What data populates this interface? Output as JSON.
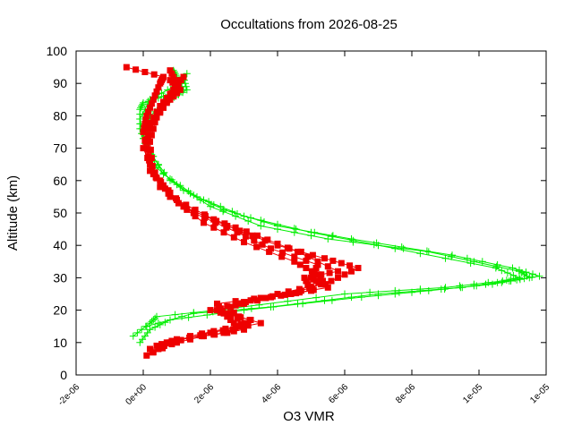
{
  "chart_data": {
    "type": "scatter",
    "title": "Occultations from 2026-08-25",
    "xlabel": "O3 VMR",
    "ylabel": "Altitude (km)",
    "xlim": [
      -2e-06,
      1.2e-05
    ],
    "ylim": [
      0,
      100
    ],
    "x_ticks": [
      {
        "value": -2e-06,
        "label": "-2e-06"
      },
      {
        "value": 0,
        "label": "0e+00"
      },
      {
        "value": 2e-06,
        "label": "2e-06"
      },
      {
        "value": 4e-06,
        "label": "4e-06"
      },
      {
        "value": 6e-06,
        "label": "6e-06"
      },
      {
        "value": 8e-06,
        "label": "8e-06"
      },
      {
        "value": 1e-05,
        "label": "1e-05"
      },
      {
        "value": 1.2e-05,
        "label": "1e-05"
      }
    ],
    "y_ticks": [
      0,
      10,
      20,
      30,
      40,
      50,
      60,
      70,
      80,
      90,
      100
    ],
    "grid": false,
    "legend": "none",
    "series": [
      {
        "marker": "plus",
        "color": "#00ee00",
        "profiles": [
          {
            "x": [
              -1e-07,
              2e-07,
              8e-07,
              3e-06,
              6.5e-06,
              8.5e-06,
              1.04e-05,
              1.15e-05,
              1.12e-05,
              8.5e-06,
              5.5e-06,
              3.5e-06,
              2e-06,
              8e-07,
              1e-07,
              -1e-07,
              -1e-07,
              0,
              6e-07,
              1.2e-06,
              1e-06,
              9e-07
            ],
            "y": [
              10,
              14,
              17,
              20,
              24,
              26,
              28,
              30,
              32,
              38,
              42,
              46,
              52,
              60,
              70,
              76,
              82,
              84,
              86,
              88,
              92,
              94
            ]
          },
          {
            "x": [
              1e-07,
              1.5e-06,
              3.8e-06,
              7e-06,
              9.5e-06,
              1.09e-05,
              1.18e-05,
              1.1e-05,
              9.2e-06,
              6.2e-06,
              4e-06,
              2.4e-06,
              1.2e-06,
              4e-07,
              1e-07,
              2e-07,
              8e-07,
              1.3e-06,
              1.2e-06
            ],
            "y": [
              15,
              19,
              21,
              25,
              27,
              29,
              30.5,
              33,
              37,
              42,
              46,
              51,
              57,
              64,
              72,
              80,
              85,
              88,
              92
            ]
          },
          {
            "x": [
              -3e-07,
              2e-07,
              4e-07,
              2.6e-06,
              6e-06,
              9e-06,
              1.07e-05,
              1.12e-05,
              1.05e-05,
              7.5e-06,
              5e-06,
              3e-06,
              1.6e-06,
              6e-07,
              0,
              -1e-07,
              2e-07,
              9e-07,
              1.3e-06
            ],
            "y": [
              12,
              16,
              18,
              20.5,
              25,
              27,
              29,
              30,
              33,
              39,
              44,
              49,
              55,
              62,
              73,
              79,
              85,
              89,
              93
            ]
          }
        ]
      },
      {
        "marker": "square",
        "color": "#ee0000",
        "profiles": [
          {
            "x": [
              1e-07,
              8e-07,
              2e-06,
              3.5e-06,
              2.2e-06,
              3.8e-06,
              5.5e-06,
              5.2e-06,
              4.5e-06,
              3e-06,
              1.8e-06,
              8e-07,
              2e-07,
              0,
              1e-07,
              3e-07,
              5e-07,
              6e-07,
              -5e-07
            ],
            "y": [
              6,
              10,
              13,
              16,
              20,
              24,
              27,
              31,
              35,
              41,
              47,
              55,
              65,
              75,
              80,
              85,
              90,
              92,
              95
            ]
          },
          {
            "x": [
              3e-07,
              1.4e-06,
              2.8e-06,
              2.4e-06,
              2.2e-06,
              4.4e-06,
              5.6e-06,
              6.4e-06,
              5.4e-06,
              4e-06,
              2.5e-06,
              1.2e-06,
              3e-07,
              2e-07,
              4e-07,
              8e-07,
              1e-06,
              8e-07
            ],
            "y": [
              7,
              12,
              15,
              19,
              22,
              25,
              29,
              33,
              36,
              40,
              46,
              52,
              62,
              72,
              80,
              86,
              90,
              94
            ]
          },
          {
            "x": [
              2e-07,
              1.8e-06,
              3e-06,
              2.6e-06,
              3.2e-06,
              5e-06,
              4.8e-06,
              5.8e-06,
              4.6e-06,
              3.4e-06,
              2.1e-06,
              1e-06,
              2e-07,
              1e-07,
              5e-07,
              9e-07,
              1.2e-06
            ],
            "y": [
              8,
              12,
              14,
              21,
              23,
              26,
              30,
              32,
              38,
              43,
              48,
              54,
              63,
              76,
              83,
              88,
              92
            ]
          },
          {
            "x": [
              4e-07,
              1e-06,
              2.5e-06,
              3.2e-06,
              2e-06,
              4e-06,
              5.3e-06,
              5e-06,
              5.2e-06,
              3.8e-06,
              2.8e-06,
              1.5e-06,
              5e-07,
              0,
              3e-07,
              7e-07,
              1.1e-06,
              8e-07
            ],
            "y": [
              9,
              11,
              13,
              17,
              20,
              25,
              28,
              30,
              34,
              39,
              44,
              50,
              58,
              70,
              78,
              84,
              88,
              91
            ]
          }
        ]
      }
    ]
  }
}
